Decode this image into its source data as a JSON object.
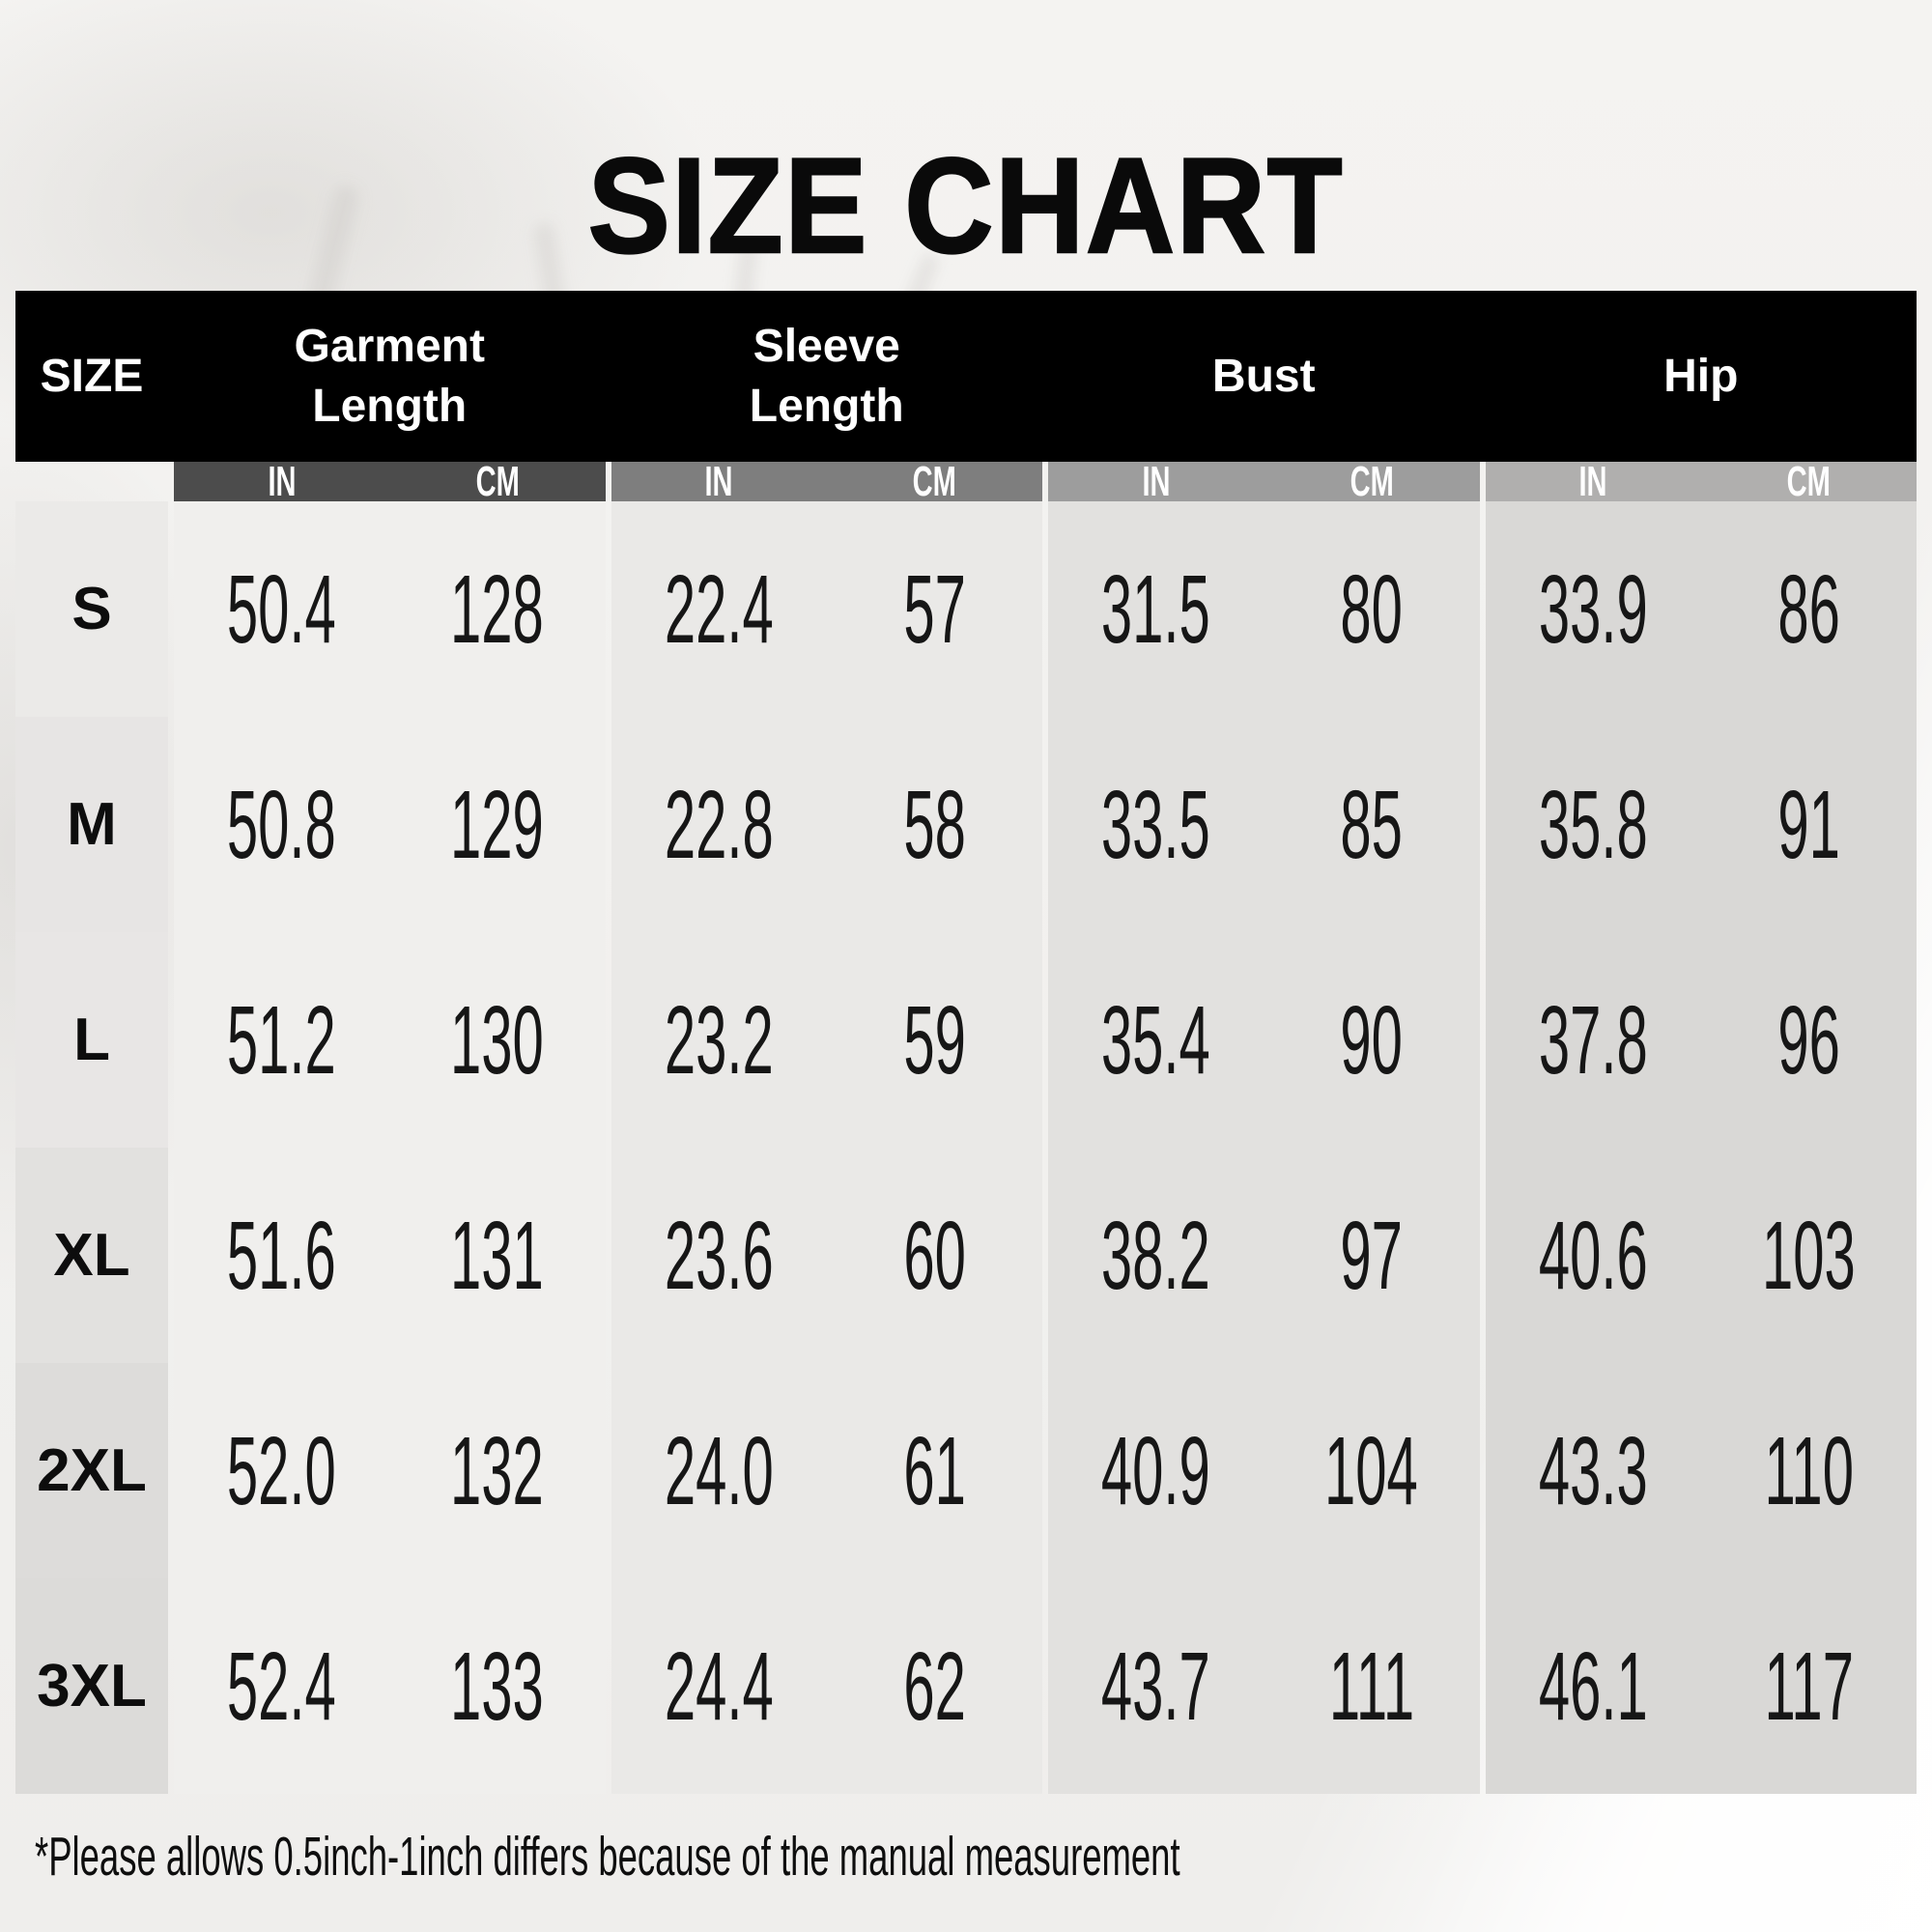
{
  "chart_data": {
    "type": "table",
    "title": "SIZE CHART",
    "size_column_label": "SIZE",
    "groups": [
      {
        "l1": "Garment",
        "l2": "Length"
      },
      {
        "l1": "Sleeve",
        "l2": "Length"
      },
      {
        "l1": "Bust",
        "l2": ""
      },
      {
        "l1": "Hip",
        "l2": ""
      }
    ],
    "units": {
      "in": "IN",
      "cm": "CM"
    },
    "rows": [
      {
        "size": "S",
        "values": [
          "50.4",
          "128",
          "22.4",
          "57",
          "31.5",
          "80",
          "33.9",
          "86"
        ]
      },
      {
        "size": "M",
        "values": [
          "50.8",
          "129",
          "22.8",
          "58",
          "33.5",
          "85",
          "35.8",
          "91"
        ]
      },
      {
        "size": "L",
        "values": [
          "51.2",
          "130",
          "23.2",
          "59",
          "35.4",
          "90",
          "37.8",
          "96"
        ]
      },
      {
        "size": "XL",
        "values": [
          "51.6",
          "131",
          "23.6",
          "60",
          "38.2",
          "97",
          "40.6",
          "103"
        ]
      },
      {
        "size": "2XL",
        "values": [
          "52.0",
          "132",
          "24.0",
          "61",
          "40.9",
          "104",
          "43.3",
          "110"
        ]
      },
      {
        "size": "3XL",
        "values": [
          "52.4",
          "133",
          "24.4",
          "62",
          "43.7",
          "111",
          "46.1",
          "117"
        ]
      }
    ],
    "note": "*Please allows 0.5inch-1inch differs because of the manual measurement"
  },
  "colors": {
    "table_header_bg": "#000000",
    "header_text": "#ffffff",
    "unit_banner_garment": "#4c4c4c",
    "unit_banner_sleeve": "#7e7e7e",
    "unit_banner_bust": "#9d9d9d",
    "unit_banner_hip": "#b0afae",
    "body_text": "#111111"
  }
}
